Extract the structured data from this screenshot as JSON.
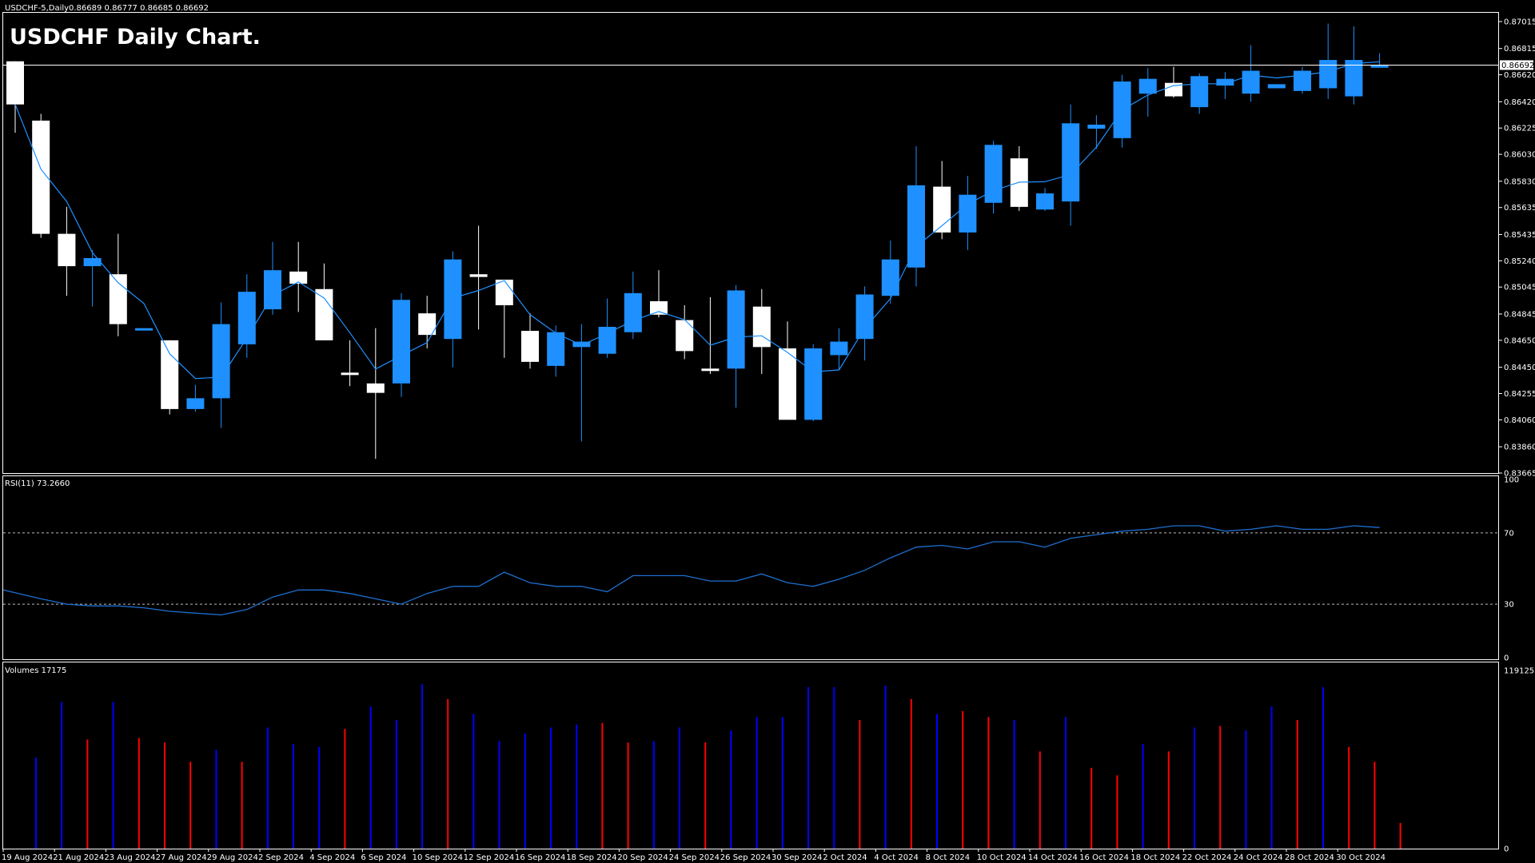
{
  "header": {
    "symbol_info": "USDCHF-5,Daily",
    "ohlc_info": "0.86689 0.86777 0.86685 0.86692",
    "title": "USDCHF Daily Chart."
  },
  "colors": {
    "background": "#000000",
    "bull": "#1E90FF",
    "bear": "#FFFFFF",
    "ma_line": "#1E90FF",
    "rsi_line": "#1E6FD0",
    "vol_up": "#0000FF",
    "vol_down": "#FF0000",
    "grid": "#FFFFFF"
  },
  "chart_data": [
    {
      "type": "candlestick",
      "panel": "price",
      "ylim": [
        0.83665,
        0.8708
      ],
      "y_ticks": [
        "0.87015",
        "0.86815",
        "0.86620",
        "0.86420",
        "0.86225",
        "0.86030",
        "0.85830",
        "0.85635",
        "0.85435",
        "0.85240",
        "0.85045",
        "0.84845",
        "0.84650",
        "0.84450",
        "0.84255",
        "0.84060",
        "0.83860",
        "0.83665"
      ],
      "current_price": "0.86692",
      "x_labels": [
        "19 Aug 2024",
        "21 Aug 2024",
        "23 Aug 2024",
        "27 Aug 2024",
        "29 Aug 2024",
        "2 Sep 2024",
        "4 Sep 2024",
        "6 Sep 2024",
        "10 Sep 2024",
        "12 Sep 2024",
        "16 Sep 2024",
        "18 Sep 2024",
        "20 Sep 2024",
        "24 Sep 2024",
        "26 Sep 2024",
        "30 Sep 2024",
        "2 Oct 2024",
        "4 Oct 2024",
        "8 Oct 2024",
        "10 Oct 2024",
        "14 Oct 2024",
        "16 Oct 2024",
        "18 Oct 2024",
        "22 Oct 2024",
        "24 Oct 2024",
        "28 Oct 2024",
        "30 Oct 2024"
      ],
      "candles": [
        {
          "o": 0.8672,
          "h": 0.8672,
          "l": 0.8619,
          "c": 0.864
        },
        {
          "o": 0.8628,
          "h": 0.8633,
          "l": 0.8541,
          "c": 0.8544
        },
        {
          "o": 0.8544,
          "h": 0.8564,
          "l": 0.8498,
          "c": 0.852
        },
        {
          "o": 0.852,
          "h": 0.8532,
          "l": 0.849,
          "c": 0.8526
        },
        {
          "o": 0.8514,
          "h": 0.8544,
          "l": 0.8468,
          "c": 0.8477
        },
        {
          "o": 0.8474,
          "h": 0.8474,
          "l": 0.8474,
          "c": 0.8474
        },
        {
          "o": 0.8465,
          "h": 0.8465,
          "l": 0.841,
          "c": 0.8414
        },
        {
          "o": 0.8414,
          "h": 0.8432,
          "l": 0.8412,
          "c": 0.8422
        },
        {
          "o": 0.8422,
          "h": 0.8493,
          "l": 0.84,
          "c": 0.8477
        },
        {
          "o": 0.8462,
          "h": 0.8514,
          "l": 0.8452,
          "c": 0.8501
        },
        {
          "o": 0.8488,
          "h": 0.8538,
          "l": 0.8484,
          "c": 0.8517
        },
        {
          "o": 0.8516,
          "h": 0.8538,
          "l": 0.8486,
          "c": 0.8507
        },
        {
          "o": 0.8503,
          "h": 0.8522,
          "l": 0.8467,
          "c": 0.8465
        },
        {
          "o": 0.8441,
          "h": 0.8465,
          "l": 0.8431,
          "c": 0.844
        },
        {
          "o": 0.8433,
          "h": 0.8474,
          "l": 0.8377,
          "c": 0.8426
        },
        {
          "o": 0.8433,
          "h": 0.85,
          "l": 0.8423,
          "c": 0.8495
        },
        {
          "o": 0.8485,
          "h": 0.8498,
          "l": 0.8459,
          "c": 0.8469
        },
        {
          "o": 0.8466,
          "h": 0.8531,
          "l": 0.8445,
          "c": 0.8525
        },
        {
          "o": 0.8514,
          "h": 0.855,
          "l": 0.8473,
          "c": 0.8512
        },
        {
          "o": 0.851,
          "h": 0.851,
          "l": 0.8452,
          "c": 0.8491
        },
        {
          "o": 0.8472,
          "h": 0.8485,
          "l": 0.8444,
          "c": 0.8449
        },
        {
          "o": 0.8446,
          "h": 0.8476,
          "l": 0.8438,
          "c": 0.8471
        },
        {
          "o": 0.846,
          "h": 0.8477,
          "l": 0.839,
          "c": 0.8464
        },
        {
          "o": 0.8455,
          "h": 0.8496,
          "l": 0.8452,
          "c": 0.8475
        },
        {
          "o": 0.8471,
          "h": 0.8516,
          "l": 0.8466,
          "c": 0.85
        },
        {
          "o": 0.8494,
          "h": 0.8517,
          "l": 0.8482,
          "c": 0.8484
        },
        {
          "o": 0.848,
          "h": 0.8491,
          "l": 0.8451,
          "c": 0.8457
        },
        {
          "o": 0.8444,
          "h": 0.8497,
          "l": 0.844,
          "c": 0.8443
        },
        {
          "o": 0.8444,
          "h": 0.8506,
          "l": 0.8415,
          "c": 0.8502
        },
        {
          "o": 0.849,
          "h": 0.8503,
          "l": 0.844,
          "c": 0.846
        },
        {
          "o": 0.8459,
          "h": 0.8479,
          "l": 0.8407,
          "c": 0.8406
        },
        {
          "o": 0.8406,
          "h": 0.8462,
          "l": 0.8405,
          "c": 0.8459
        },
        {
          "o": 0.8454,
          "h": 0.8474,
          "l": 0.8443,
          "c": 0.8464
        },
        {
          "o": 0.8466,
          "h": 0.8505,
          "l": 0.845,
          "c": 0.8499
        },
        {
          "o": 0.8498,
          "h": 0.8539,
          "l": 0.8492,
          "c": 0.8525
        },
        {
          "o": 0.8519,
          "h": 0.8609,
          "l": 0.8505,
          "c": 0.858
        },
        {
          "o": 0.8579,
          "h": 0.8598,
          "l": 0.854,
          "c": 0.8545
        },
        {
          "o": 0.8545,
          "h": 0.8587,
          "l": 0.8532,
          "c": 0.8573
        },
        {
          "o": 0.8567,
          "h": 0.8613,
          "l": 0.8559,
          "c": 0.861
        },
        {
          "o": 0.86,
          "h": 0.8609,
          "l": 0.8561,
          "c": 0.8564
        },
        {
          "o": 0.8562,
          "h": 0.8578,
          "l": 0.8561,
          "c": 0.8574
        },
        {
          "o": 0.8568,
          "h": 0.864,
          "l": 0.855,
          "c": 0.8626
        },
        {
          "o": 0.8622,
          "h": 0.8632,
          "l": 0.8607,
          "c": 0.8625
        },
        {
          "o": 0.8615,
          "h": 0.8662,
          "l": 0.8608,
          "c": 0.8657
        },
        {
          "o": 0.8648,
          "h": 0.8667,
          "l": 0.8631,
          "c": 0.8659
        },
        {
          "o": 0.8656,
          "h": 0.8668,
          "l": 0.8645,
          "c": 0.8646
        },
        {
          "o": 0.8638,
          "h": 0.8663,
          "l": 0.8633,
          "c": 0.8661
        },
        {
          "o": 0.8654,
          "h": 0.8664,
          "l": 0.8644,
          "c": 0.8659
        },
        {
          "o": 0.8648,
          "h": 0.8684,
          "l": 0.8642,
          "c": 0.8665
        },
        {
          "o": 0.8652,
          "h": 0.8655,
          "l": 0.8652,
          "c": 0.8655
        },
        {
          "o": 0.865,
          "h": 0.8668,
          "l": 0.8648,
          "c": 0.8665
        },
        {
          "o": 0.8652,
          "h": 0.87,
          "l": 0.8644,
          "c": 0.8673
        },
        {
          "o": 0.8646,
          "h": 0.8698,
          "l": 0.864,
          "c": 0.8673
        },
        {
          "o": 0.8669,
          "h": 0.8678,
          "l": 0.8669,
          "c": 0.8669
        }
      ]
    },
    {
      "type": "line",
      "panel": "rsi",
      "label": "RSI(11) 73.2660",
      "ylim": [
        0,
        100
      ],
      "y_ticks": [
        "100",
        "70",
        "30",
        "0"
      ],
      "levels": [
        70,
        30
      ],
      "values": [
        38,
        33,
        30,
        29,
        29,
        28,
        26,
        25,
        24,
        27,
        34,
        38,
        38,
        36,
        33,
        30,
        36,
        40,
        40,
        48,
        42,
        40,
        40,
        37,
        46,
        46,
        46,
        43,
        43,
        47,
        42,
        40,
        44,
        49,
        56,
        62,
        63,
        61,
        65,
        65,
        62,
        67,
        69,
        71,
        72,
        74,
        74,
        71,
        72,
        74,
        72,
        72,
        74,
        73
      ]
    },
    {
      "type": "bar",
      "panel": "volumes",
      "label": "Volumes 17175",
      "ylim": [
        0,
        119125
      ],
      "y_ticks": [
        "119125",
        "0"
      ],
      "bars": [
        {
          "v": 61000,
          "up": true
        },
        {
          "v": 98000,
          "up": true
        },
        {
          "v": 73000,
          "up": false
        },
        {
          "v": 98000,
          "up": true
        },
        {
          "v": 74000,
          "up": false
        },
        {
          "v": 71000,
          "up": false
        },
        {
          "v": 58000,
          "up": false
        },
        {
          "v": 66000,
          "up": true
        },
        {
          "v": 58000,
          "up": false
        },
        {
          "v": 81000,
          "up": true
        },
        {
          "v": 70000,
          "up": true
        },
        {
          "v": 68000,
          "up": true
        },
        {
          "v": 80000,
          "up": false
        },
        {
          "v": 95000,
          "up": true
        },
        {
          "v": 86000,
          "up": true
        },
        {
          "v": 110000,
          "up": true
        },
        {
          "v": 100000,
          "up": false
        },
        {
          "v": 90000,
          "up": true
        },
        {
          "v": 72000,
          "up": true
        },
        {
          "v": 77000,
          "up": true
        },
        {
          "v": 81000,
          "up": true
        },
        {
          "v": 83000,
          "up": true
        },
        {
          "v": 84000,
          "up": false
        },
        {
          "v": 71000,
          "up": false
        },
        {
          "v": 72000,
          "up": true
        },
        {
          "v": 81000,
          "up": true
        },
        {
          "v": 71000,
          "up": false
        },
        {
          "v": 79000,
          "up": true
        },
        {
          "v": 88000,
          "up": true
        },
        {
          "v": 88000,
          "up": true
        },
        {
          "v": 108000,
          "up": true
        },
        {
          "v": 108000,
          "up": true
        },
        {
          "v": 86000,
          "up": false
        },
        {
          "v": 109000,
          "up": true
        },
        {
          "v": 100000,
          "up": false
        },
        {
          "v": 90000,
          "up": true
        },
        {
          "v": 92000,
          "up": false
        },
        {
          "v": 88000,
          "up": false
        },
        {
          "v": 86000,
          "up": true
        },
        {
          "v": 65000,
          "up": false
        },
        {
          "v": 88000,
          "up": true
        },
        {
          "v": 54000,
          "up": false
        },
        {
          "v": 49000,
          "up": false
        },
        {
          "v": 70000,
          "up": true
        },
        {
          "v": 65000,
          "up": false
        },
        {
          "v": 81000,
          "up": true
        },
        {
          "v": 82000,
          "up": false
        },
        {
          "v": 79000,
          "up": true
        },
        {
          "v": 95000,
          "up": true
        },
        {
          "v": 86000,
          "up": false
        },
        {
          "v": 108000,
          "up": true
        },
        {
          "v": 68000,
          "up": false
        },
        {
          "v": 58000,
          "up": false
        },
        {
          "v": 17175,
          "up": false
        }
      ]
    }
  ]
}
